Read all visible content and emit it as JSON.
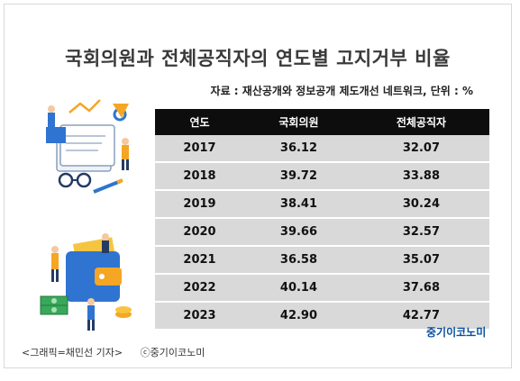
{
  "title": "국회의원과 전체공직자의 연도별 고지거부 비율",
  "source": "자료 : 재산공개와 정보공개 제도개선 네트워크, 단위 : %",
  "table": {
    "headers": [
      "연도",
      "국회의원",
      "전체공직자"
    ],
    "rows": [
      [
        "2017",
        "36.12",
        "32.07"
      ],
      [
        "2018",
        "39.72",
        "33.88"
      ],
      [
        "2019",
        "38.41",
        "30.24"
      ],
      [
        "2020",
        "39.66",
        "32.57"
      ],
      [
        "2021",
        "36.58",
        "35.07"
      ],
      [
        "2022",
        "40.14",
        "37.68"
      ],
      [
        "2023",
        "42.90",
        "42.77"
      ]
    ]
  },
  "watermark": "중기이코노미",
  "caption": {
    "credit": "<그래픽=채민선 기자>",
    "copyright": "ⓒ중기이코노미"
  },
  "colors": {
    "header_bg": "#0d0d0d",
    "row_bg": "#d9d9d9",
    "watermark": "#0b4fa0"
  },
  "icons": [
    "documents-illustration",
    "glasses-icon",
    "pen-icon",
    "wallet-illustration",
    "money-stack-icon",
    "coins-icon"
  ]
}
